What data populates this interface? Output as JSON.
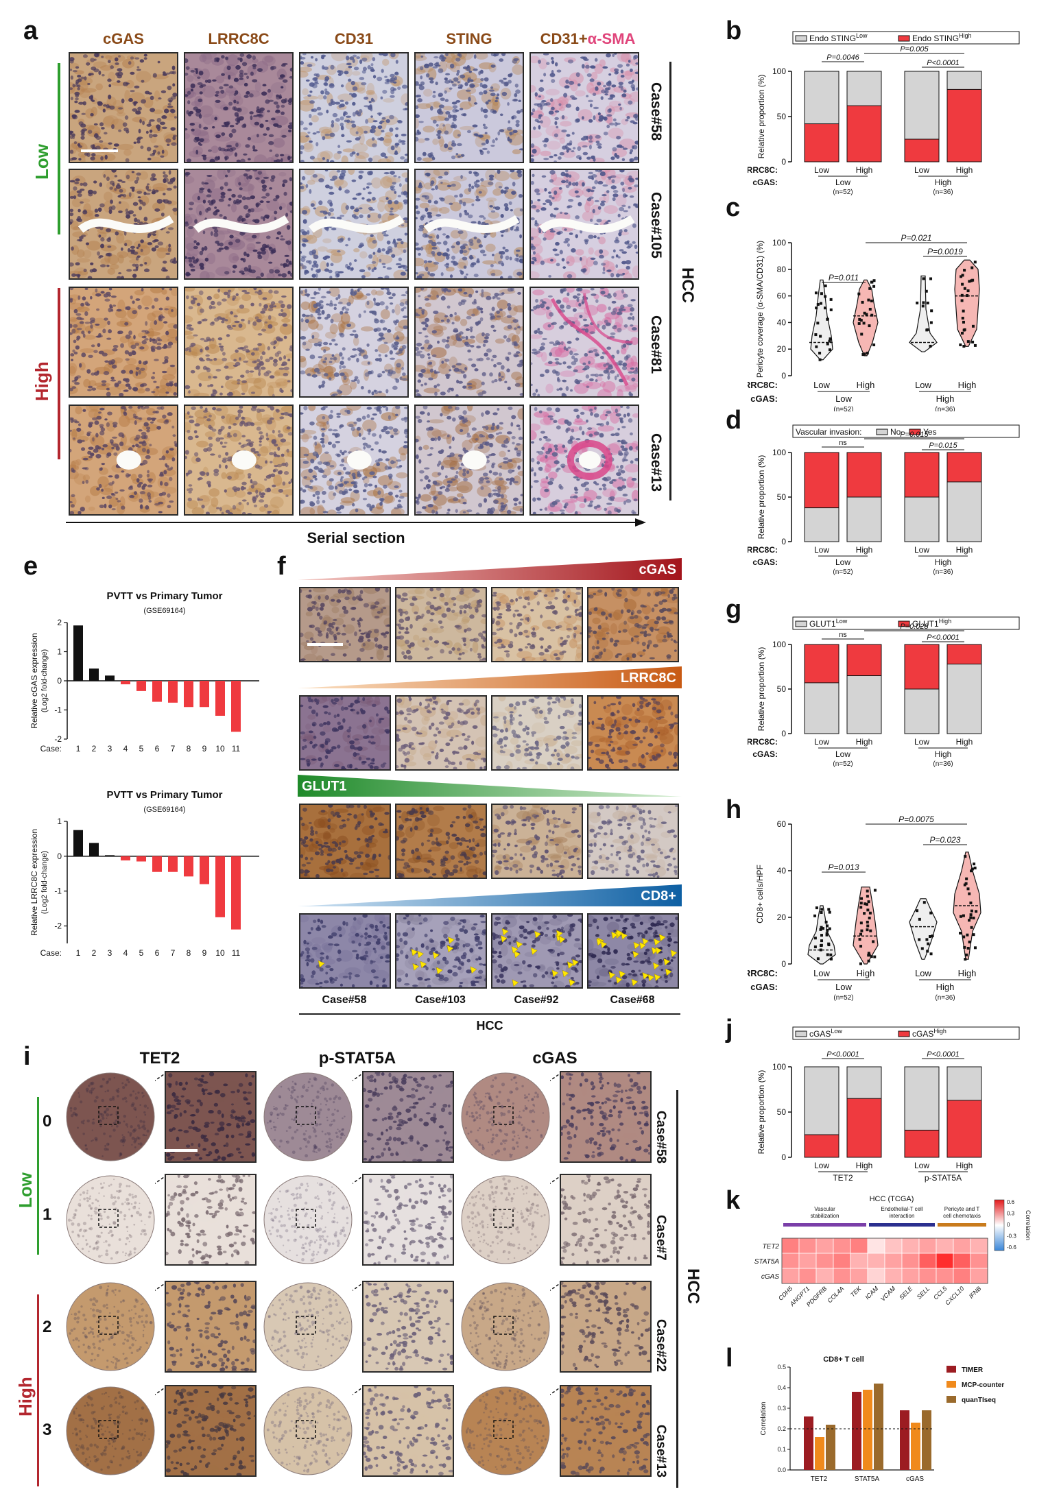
{
  "panels": {
    "a": "a",
    "b": "b",
    "c": "c",
    "d": "d",
    "e": "e",
    "f": "f",
    "g": "g",
    "h": "h",
    "i": "i",
    "j": "j",
    "k": "k",
    "l": "l"
  },
  "panel_a": {
    "columns": [
      "cGAS",
      "LRRC8C",
      "CD31",
      "STING",
      "CD31+α-SMA"
    ],
    "col4_main": "CD31+",
    "col4_accent": "α-SMA",
    "groups": {
      "low": "Low",
      "high": "High"
    },
    "cases": [
      "Case#58",
      "Case#105",
      "Case#81",
      "Case#13"
    ],
    "side_label": "HCC",
    "arrow_label": "Serial section",
    "colors": {
      "low": "#2e9e2e",
      "high": "#b3262e",
      "accent": "#e0457b"
    }
  },
  "panel_f": {
    "gradients": [
      "cGAS",
      "LRRC8C",
      "GLUT1",
      "CD8+"
    ],
    "cases": [
      "Case#58",
      "Case#103",
      "Case#92",
      "Case#68"
    ],
    "footer": "HCC"
  },
  "panel_i": {
    "columns": [
      "TET2",
      "p-STAT5A",
      "cGAS"
    ],
    "scores": [
      "0",
      "1",
      "2",
      "3"
    ],
    "groups": {
      "low": "Low",
      "high": "High"
    },
    "cases": [
      "Case#58",
      "Case#7",
      "Case#22",
      "Case#13"
    ],
    "side_label": "HCC"
  },
  "chart_data": [
    {
      "panel": "b",
      "type": "bar",
      "stacked": true,
      "ylabel": "Relative proportion (%)",
      "ylim": [
        0,
        100
      ],
      "legend": [
        "Endo STING^Low",
        "Endo STING^High"
      ],
      "row1_label": "LRRC8C:",
      "row2_label": "cGAS:",
      "categories": [
        "Low",
        "High",
        "Low",
        "High"
      ],
      "groups": [
        {
          "name": "Low",
          "n": "(n=52)"
        },
        {
          "name": "High",
          "n": "(n=36)"
        }
      ],
      "series": [
        {
          "name": "Endo STING^High",
          "values": [
            42,
            62,
            25,
            80
          ]
        }
      ],
      "annotations": [
        "P=0.0046",
        "P=0.005",
        "P<0.0001"
      ]
    },
    {
      "panel": "c",
      "type": "violin",
      "ylabel": "Pericyte coverage (α-SMA/CD31) (%)",
      "ylim": [
        0,
        100
      ],
      "row1_label": "LRRC8C:",
      "row2_label": "cGAS:",
      "categories": [
        "Low",
        "High",
        "Low",
        "High"
      ],
      "groups": [
        {
          "name": "Low",
          "n": "(n=52)"
        },
        {
          "name": "High",
          "n": "(n=36)"
        }
      ],
      "medians": [
        25,
        45,
        25,
        60
      ],
      "annotations": [
        "P=0.011",
        "P=0.021",
        "P=0.0019"
      ]
    },
    {
      "panel": "d",
      "type": "bar",
      "stacked": true,
      "ylabel": "Relative proportion (%)",
      "ylim": [
        0,
        100
      ],
      "legend_title": "Vascular invasion:",
      "legend": [
        "No",
        "Yes"
      ],
      "row1_label": "LRRC8C:",
      "row2_label": "cGAS:",
      "categories": [
        "Low",
        "High",
        "Low",
        "High"
      ],
      "groups": [
        {
          "name": "Low",
          "n": "(n=52)"
        },
        {
          "name": "High",
          "n": "(n=36)"
        }
      ],
      "series": [
        {
          "name": "No",
          "values": [
            38,
            50,
            50,
            67
          ]
        }
      ],
      "annotations": [
        "ns",
        "P=0.015",
        "P=0.015"
      ]
    },
    {
      "panel": "e1",
      "type": "bar",
      "title": "PVTT vs Primary Tumor",
      "subtitle": "(GSE69164)",
      "ylabel": "Relative cGAS expression",
      "ylabel2": "(Log2 fold-change)",
      "xlabel": "Case:",
      "ylim": [
        -2,
        2
      ],
      "categories": [
        "1",
        "2",
        "3",
        "4",
        "5",
        "6",
        "7",
        "8",
        "9",
        "10",
        "11"
      ],
      "values": [
        1.9,
        0.42,
        0.18,
        -0.12,
        -0.35,
        -0.72,
        -0.75,
        -0.9,
        -0.9,
        -1.2,
        -1.75
      ]
    },
    {
      "panel": "e2",
      "type": "bar",
      "title": "PVTT vs Primary Tumor",
      "subtitle": "(GSE69164)",
      "ylabel": "Relative LRRC8C expression",
      "ylabel2": "(Log2 fold-change)",
      "xlabel": "Case:",
      "ylim": [
        -2.5,
        1
      ],
      "categories": [
        "1",
        "2",
        "3",
        "4",
        "5",
        "6",
        "7",
        "8",
        "9",
        "10",
        "11"
      ],
      "values": [
        0.75,
        0.38,
        0.03,
        -0.12,
        -0.15,
        -0.45,
        -0.45,
        -0.58,
        -0.8,
        -1.75,
        -2.1
      ]
    },
    {
      "panel": "g",
      "type": "bar",
      "stacked": true,
      "ylabel": "Relative proportion (%)",
      "ylim": [
        0,
        100
      ],
      "legend": [
        "GLUT1^Low",
        "GLUT1^High"
      ],
      "row1_label": "LRRC8C:",
      "row2_label": "cGAS:",
      "categories": [
        "Low",
        "High",
        "Low",
        "High"
      ],
      "groups": [
        {
          "name": "Low",
          "n": "(n=52)"
        },
        {
          "name": "High",
          "n": "(n=36)"
        }
      ],
      "series": [
        {
          "name": "GLUT1^Low",
          "values": [
            57,
            65,
            50,
            78
          ]
        }
      ],
      "annotations": [
        "ns",
        "P=0.028",
        "P<0.0001"
      ]
    },
    {
      "panel": "h",
      "type": "violin",
      "ylabel": "CD8+ cells/HPF",
      "ylim": [
        0,
        60
      ],
      "row1_label": "LRRC8C:",
      "row2_label": "cGAS:",
      "categories": [
        "Low",
        "High",
        "Low",
        "High"
      ],
      "groups": [
        {
          "name": "Low",
          "n": "(n=52)"
        },
        {
          "name": "High",
          "n": "(n=36)"
        }
      ],
      "medians": [
        6,
        12,
        16,
        25
      ],
      "annotations": [
        "P=0.013",
        "P=0.0075",
        "P=0.023"
      ]
    },
    {
      "panel": "j",
      "type": "bar",
      "stacked": true,
      "ylabel": "Relative proportion (%)",
      "ylim": [
        0,
        100
      ],
      "legend": [
        "cGAS^Low",
        "cGAS^High"
      ],
      "categories": [
        "Low",
        "High",
        "Low",
        "High"
      ],
      "groups": [
        {
          "name": "TET2"
        },
        {
          "name": "p-STAT5A"
        }
      ],
      "series": [
        {
          "name": "cGAS^High",
          "values": [
            25,
            65,
            30,
            63
          ]
        }
      ],
      "annotations": [
        "P<0.0001",
        "P<0.0001"
      ]
    },
    {
      "panel": "k",
      "type": "heatmap",
      "title": "HCC (TCGA)",
      "group_labels": [
        "Vascular stabilization",
        "Endothelial-T cell interaction",
        "Pericyte and T cell chemotaxis"
      ],
      "group_colors": [
        "#7a3ea8",
        "#2b2f8f",
        "#c97b1c"
      ],
      "rows": [
        "TET2",
        "STAT5A",
        "cGAS"
      ],
      "cols": [
        "CDH5",
        "ANGPT1",
        "PDGFRB",
        "COL4A",
        "TEK",
        "ICAM",
        "VCAM",
        "SELE",
        "SELL",
        "CCL5",
        "CXCL10",
        "IFNB"
      ],
      "values": [
        [
          0.35,
          0.3,
          0.25,
          0.3,
          0.35,
          0.05,
          0.15,
          0.2,
          0.25,
          0.2,
          0.25,
          0.2
        ],
        [
          0.3,
          0.25,
          0.3,
          0.35,
          0.2,
          0.2,
          0.25,
          0.3,
          0.45,
          0.6,
          0.45,
          0.3
        ],
        [
          0.25,
          0.3,
          0.2,
          0.3,
          0.25,
          0.1,
          0.2,
          0.25,
          0.3,
          0.3,
          0.35,
          0.25
        ]
      ],
      "colorbar_label": "Correlation",
      "colorbar_ticks": [
        "0.6",
        "0.3",
        "0",
        "-0.3",
        "-0.6"
      ]
    },
    {
      "panel": "l",
      "type": "bar",
      "title": "CD8+ T cell",
      "ylabel": "Correlation",
      "ylim": [
        0,
        0.5
      ],
      "yticks": [
        "0.0",
        "0.1",
        "0.2",
        "0.3",
        "0.4",
        "0.5"
      ],
      "categories": [
        "TET2",
        "STAT5A",
        "cGAS"
      ],
      "series": [
        {
          "name": "TIMER",
          "values": [
            0.26,
            0.38,
            0.29
          ],
          "color": "#9c1c22"
        },
        {
          "name": "MCP-counter",
          "values": [
            0.16,
            0.39,
            0.23
          ],
          "color": "#f08a1c"
        },
        {
          "name": "quanTIseq",
          "values": [
            0.22,
            0.42,
            0.29
          ],
          "color": "#9a6a2c"
        }
      ],
      "reference_line": 0.2
    }
  ]
}
